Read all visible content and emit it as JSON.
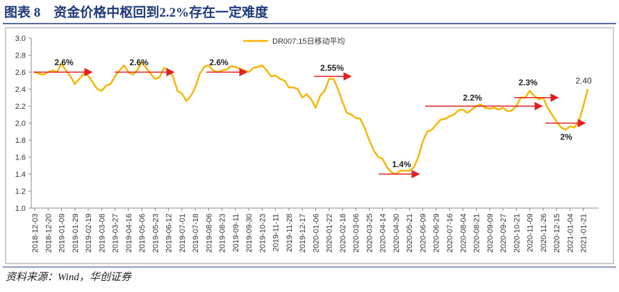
{
  "title": "图表 8　资金价格中枢回到2.2%存在一定难度",
  "source": "资料来源：Wind，华创证券",
  "chart_data": {
    "type": "line",
    "categories": [
      "2018-12-03",
      null,
      null,
      "2018-12-20",
      null,
      null,
      "2019-01-09",
      null,
      null,
      "2019-01-29",
      null,
      null,
      "2019-02-19",
      null,
      null,
      "2019-03-08",
      null,
      null,
      "2019-03-27",
      null,
      null,
      "2019-04-16",
      null,
      null,
      "2019-05-06",
      null,
      null,
      "2019-05-23",
      null,
      null,
      "2019-06-12",
      null,
      null,
      "2019-07-01",
      null,
      null,
      "2019-07-18",
      null,
      null,
      "2019-08-06",
      null,
      null,
      "2019-08-23",
      null,
      null,
      "2019-09-11",
      null,
      null,
      "2019-09-30",
      null,
      null,
      "2019-10-23",
      null,
      null,
      "2019-11-11",
      null,
      null,
      "2019-11-28",
      null,
      null,
      "2019-12-17",
      null,
      null,
      "2020-01-06",
      null,
      null,
      "2020-01-22",
      null,
      null,
      "2020-02-18",
      null,
      null,
      "2020-03-06",
      null,
      null,
      "2020-03-25",
      null,
      null,
      "2020-04-14",
      null,
      null,
      "2020-04-30",
      null,
      null,
      "2020-05-21",
      null,
      null,
      "2020-06-09",
      null,
      null,
      "2020-06-29",
      null,
      null,
      "2020-07-16",
      null,
      null,
      "2020-08-04",
      null,
      null,
      "2020-08-21",
      null,
      null,
      "2020-09-09",
      null,
      null,
      "2020-09-27",
      null,
      null,
      "2020-10-21",
      null,
      null,
      "2020-11-09",
      null,
      null,
      "2020-11-26",
      null,
      null,
      "2020-12-15",
      null,
      null,
      "2021-01-04",
      null,
      null,
      "2021-01-21",
      null
    ],
    "series": [
      {
        "name": "DR007:15日移动平均",
        "color": "#f7b500",
        "values": [
          2.6,
          2.58,
          2.57,
          2.6,
          2.62,
          2.6,
          2.7,
          2.62,
          2.55,
          2.46,
          2.52,
          2.58,
          2.56,
          2.48,
          2.4,
          2.38,
          2.44,
          2.46,
          2.55,
          2.62,
          2.68,
          2.6,
          2.57,
          2.62,
          2.72,
          2.65,
          2.58,
          2.52,
          2.54,
          2.65,
          2.62,
          2.55,
          2.38,
          2.35,
          2.26,
          2.32,
          2.42,
          2.58,
          2.66,
          2.68,
          2.62,
          2.6,
          2.62,
          2.63,
          2.67,
          2.66,
          2.64,
          2.62,
          2.6,
          2.65,
          2.66,
          2.68,
          2.62,
          2.55,
          2.56,
          2.52,
          2.5,
          2.42,
          2.42,
          2.4,
          2.3,
          2.34,
          2.28,
          2.18,
          2.32,
          2.38,
          2.52,
          2.52,
          2.4,
          2.25,
          2.12,
          2.1,
          2.06,
          2.05,
          1.94,
          1.8,
          1.68,
          1.6,
          1.58,
          1.48,
          1.42,
          1.4,
          1.44,
          1.44,
          1.44,
          1.48,
          1.6,
          1.78,
          1.9,
          1.92,
          1.98,
          2.04,
          2.05,
          2.08,
          2.1,
          2.15,
          2.16,
          2.12,
          2.16,
          2.2,
          2.22,
          2.18,
          2.17,
          2.18,
          2.16,
          2.18,
          2.14,
          2.15,
          2.2,
          2.3,
          2.3,
          2.38,
          2.32,
          2.28,
          2.3,
          2.18,
          2.1,
          2.02,
          1.95,
          1.92,
          1.96,
          1.95,
          2.02,
          2.2,
          2.4
        ],
        "value_labels": [
          null,
          null,
          null,
          null,
          null,
          null,
          null,
          null,
          null,
          null,
          null,
          null,
          null,
          null,
          null,
          null,
          null,
          null,
          null,
          null,
          null,
          null,
          null,
          null,
          null,
          null,
          null,
          null,
          null,
          null,
          null,
          null,
          null,
          null,
          null,
          null,
          null,
          null,
          null,
          null,
          null,
          null,
          null,
          null,
          null,
          null,
          null,
          null,
          null,
          null,
          null,
          null,
          null,
          null,
          null,
          null,
          null,
          null,
          null,
          null,
          null,
          null,
          null,
          null,
          null,
          null,
          null,
          null,
          null,
          null,
          null,
          null,
          null,
          null,
          null,
          null,
          null,
          null,
          null,
          null,
          null,
          null,
          null,
          null,
          null,
          null,
          null,
          null,
          null,
          null,
          null,
          null,
          null,
          null,
          null,
          null,
          null,
          null,
          null,
          null,
          null,
          null,
          null,
          null,
          null,
          null,
          null,
          null,
          null,
          null,
          null,
          null,
          null,
          null,
          null,
          null,
          null,
          null,
          null,
          null,
          null,
          null,
          null,
          null,
          "2.40"
        ]
      }
    ],
    "ylim": [
      1.0,
      3.0
    ],
    "yticks": [
      {
        "value": 1.0,
        "label": "1.0"
      },
      {
        "value": 1.2,
        "label": "1.2"
      },
      {
        "value": 1.4,
        "label": "1.4"
      },
      {
        "value": 1.6,
        "label": "1.6"
      },
      {
        "value": 1.8,
        "label": "1.8"
      },
      {
        "value": 2.0,
        "label": "2.0"
      },
      {
        "value": 2.2,
        "label": "2.2"
      },
      {
        "value": 2.4,
        "label": "2.4"
      },
      {
        "value": 2.6,
        "label": "2.6"
      },
      {
        "value": 2.8,
        "label": "2.8"
      },
      {
        "value": 3.0,
        "label": "3.0"
      }
    ],
    "annotations": [
      {
        "text": "2.6%",
        "value": 2.6
      },
      {
        "text": "2.6%",
        "value": 2.6
      },
      {
        "text": "2.6%",
        "value": 2.6
      },
      {
        "text": "2.55%",
        "value": 2.55
      },
      {
        "text": "1.4%",
        "value": 1.4
      },
      {
        "text": "2.2%",
        "value": 2.2
      },
      {
        "text": "2.3%",
        "value": 2.3
      },
      {
        "text": "2%",
        "value": 2
      }
    ],
    "legend": "top"
  }
}
